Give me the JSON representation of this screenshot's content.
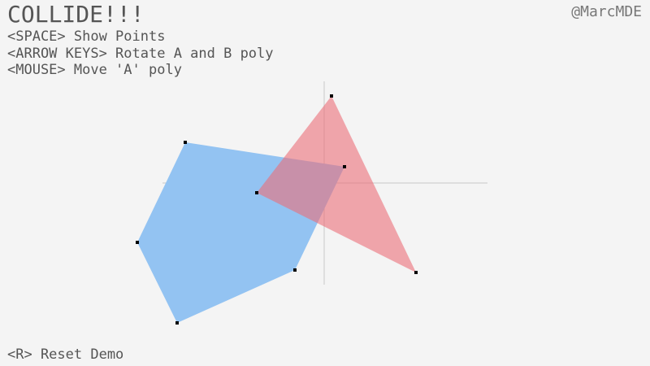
{
  "header": {
    "title": "COLLIDE!!!",
    "author": "@MarcMDE",
    "controls": [
      "<SPACE> Show Points",
      "<ARROW KEYS> Rotate A and B poly",
      "<MOUSE> Move 'A' poly"
    ]
  },
  "footer": {
    "reset": "<R> Reset Demo"
  },
  "colors": {
    "background": "#f4f4f4",
    "poly_a": "#f0a3a9",
    "poly_b": "#93c3f2",
    "overlap": "#b285a7",
    "axes": "#c8c8c8",
    "points": "#000000",
    "text": "#555555"
  },
  "scene": {
    "show_points": true,
    "polygons": [
      {
        "name": "A",
        "shape": "triangle"
      },
      {
        "name": "B",
        "shape": "pentagon"
      }
    ]
  }
}
